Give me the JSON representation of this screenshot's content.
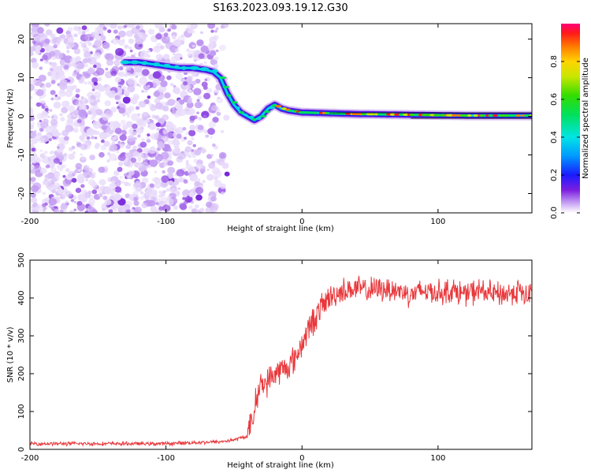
{
  "title": "S163.2023.093.19.12.G30",
  "chart_data": [
    {
      "type": "heatmap",
      "xlabel": "Height of straight line (km)",
      "ylabel": "Frequency (Hz)",
      "xlim": [
        -200,
        169
      ],
      "ylim": [
        -25,
        24
      ],
      "x_ticks": [
        -200,
        -100,
        0,
        100
      ],
      "y_ticks": [
        20,
        10,
        0,
        -10,
        -20
      ],
      "colorbar": {
        "label": "Normalized spectral amplitude",
        "ticks": [
          0.0,
          0.2,
          0.4,
          0.6,
          0.8
        ],
        "range": [
          0,
          1
        ]
      },
      "noise_region_x": [
        -200,
        -55
      ],
      "ridge": {
        "x": [
          -130,
          -120,
          -110,
          -100,
          -90,
          -80,
          -70,
          -65,
          -60,
          -55,
          -50,
          -45,
          -40,
          -35,
          -30,
          -25,
          -20,
          -15,
          -10,
          0,
          20,
          40,
          60,
          80,
          100,
          120,
          140,
          169
        ],
        "y": [
          14,
          14,
          13.5,
          13,
          12.5,
          12.5,
          12,
          11.5,
          10,
          6,
          3,
          1,
          0,
          -1,
          0,
          2,
          3,
          2,
          1.5,
          1,
          0.8,
          0.6,
          0.5,
          0.4,
          0.3,
          0.2,
          0.2,
          0.2
        ]
      }
    },
    {
      "type": "line",
      "xlabel": "Height of straight line (km)",
      "ylabel": "SNR (10 * v/v)",
      "xlim": [
        -200,
        169
      ],
      "ylim": [
        0,
        500
      ],
      "x_ticks": [
        -200,
        -100,
        0,
        100
      ],
      "y_ticks": [
        0,
        100,
        200,
        300,
        400,
        500
      ],
      "color": "#e8383c",
      "series": [
        {
          "x": [
            -200,
            -180,
            -160,
            -140,
            -120,
            -100,
            -80,
            -60,
            -50,
            -45,
            -40,
            -38,
            -35,
            -33,
            -30,
            -25,
            -20,
            -15,
            -10,
            -5,
            0,
            5,
            10,
            15,
            20,
            25,
            30,
            40,
            50,
            60,
            70,
            80,
            90,
            100,
            110,
            120,
            130,
            140,
            150,
            160,
            165,
            169
          ],
          "y": [
            15,
            15,
            15,
            15,
            15,
            15,
            18,
            20,
            25,
            30,
            35,
            60,
            100,
            150,
            170,
            180,
            200,
            210,
            220,
            240,
            280,
            320,
            350,
            380,
            400,
            410,
            420,
            425,
            420,
            425,
            420,
            410,
            420,
            415,
            420,
            410,
            420,
            410,
            410,
            420,
            400,
            420
          ]
        }
      ]
    }
  ]
}
